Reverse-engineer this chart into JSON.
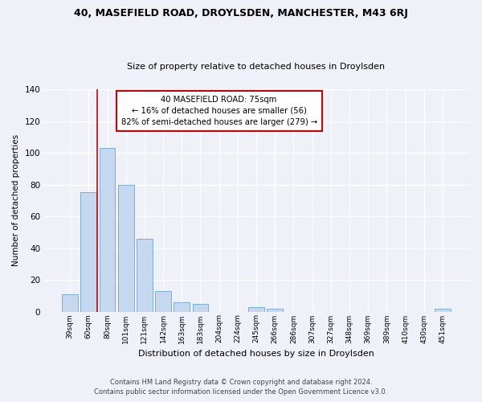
{
  "title1": "40, MASEFIELD ROAD, DROYLSDEN, MANCHESTER, M43 6RJ",
  "title2": "Size of property relative to detached houses in Droylsden",
  "xlabel": "Distribution of detached houses by size in Droylsden",
  "ylabel": "Number of detached properties",
  "bar_labels": [
    "39sqm",
    "60sqm",
    "80sqm",
    "101sqm",
    "121sqm",
    "142sqm",
    "163sqm",
    "183sqm",
    "204sqm",
    "224sqm",
    "245sqm",
    "266sqm",
    "286sqm",
    "307sqm",
    "327sqm",
    "348sqm",
    "369sqm",
    "389sqm",
    "410sqm",
    "430sqm",
    "451sqm"
  ],
  "bar_heights": [
    11,
    75,
    103,
    80,
    46,
    13,
    6,
    5,
    0,
    0,
    3,
    2,
    0,
    0,
    0,
    0,
    0,
    0,
    0,
    0,
    2
  ],
  "bar_color": "#c5d8f0",
  "bar_edge_color": "#7bafd4",
  "vline_color": "#cc0000",
  "vline_x": 1.45,
  "ylim": [
    0,
    140
  ],
  "yticks": [
    0,
    20,
    40,
    60,
    80,
    100,
    120,
    140
  ],
  "annotation_title": "40 MASEFIELD ROAD: 75sqm",
  "annotation_line1": "← 16% of detached houses are smaller (56)",
  "annotation_line2": "82% of semi-detached houses are larger (279) →",
  "annotation_box_color": "#ffffff",
  "annotation_box_edgecolor": "#cc0000",
  "footer1": "Contains HM Land Registry data © Crown copyright and database right 2024.",
  "footer2": "Contains public sector information licensed under the Open Government Licence v3.0.",
  "bg_color": "#eef2f8",
  "plot_bg_color": "#eef2f8"
}
